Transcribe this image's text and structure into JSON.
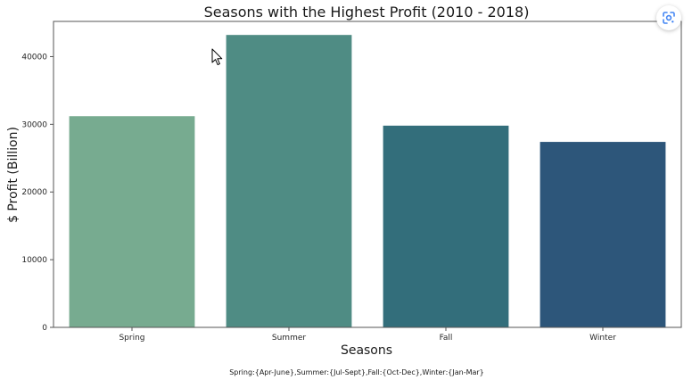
{
  "chart_data": {
    "type": "bar",
    "title": "Seasons with the Highest Profit (2010 - 2018)",
    "xlabel": "Seasons",
    "ylabel": "$ Profit (Billion)",
    "categories": [
      "Spring",
      "Summer",
      "Fall",
      "Winter"
    ],
    "values": [
      31200,
      43200,
      29800,
      27400
    ],
    "colors": [
      "#77ab90",
      "#4f8c84",
      "#336e7b",
      "#2d567a"
    ],
    "ylim": [
      0,
      45200
    ],
    "yticks": [
      0,
      10000,
      20000,
      30000,
      40000
    ],
    "ytick_labels": [
      "0",
      "10000",
      "20000",
      "30000",
      "40000"
    ],
    "grid": false,
    "footnote": "Spring:{Apr-June},Summer:{Jul-Sept},Fall:{Oct-Dec},Winter:{Jan-Mar}"
  },
  "overlay": {
    "lens_icon": "google-lens-icon",
    "cursor_icon": "mouse-pointer-icon",
    "accent_color": "#4285f4"
  }
}
